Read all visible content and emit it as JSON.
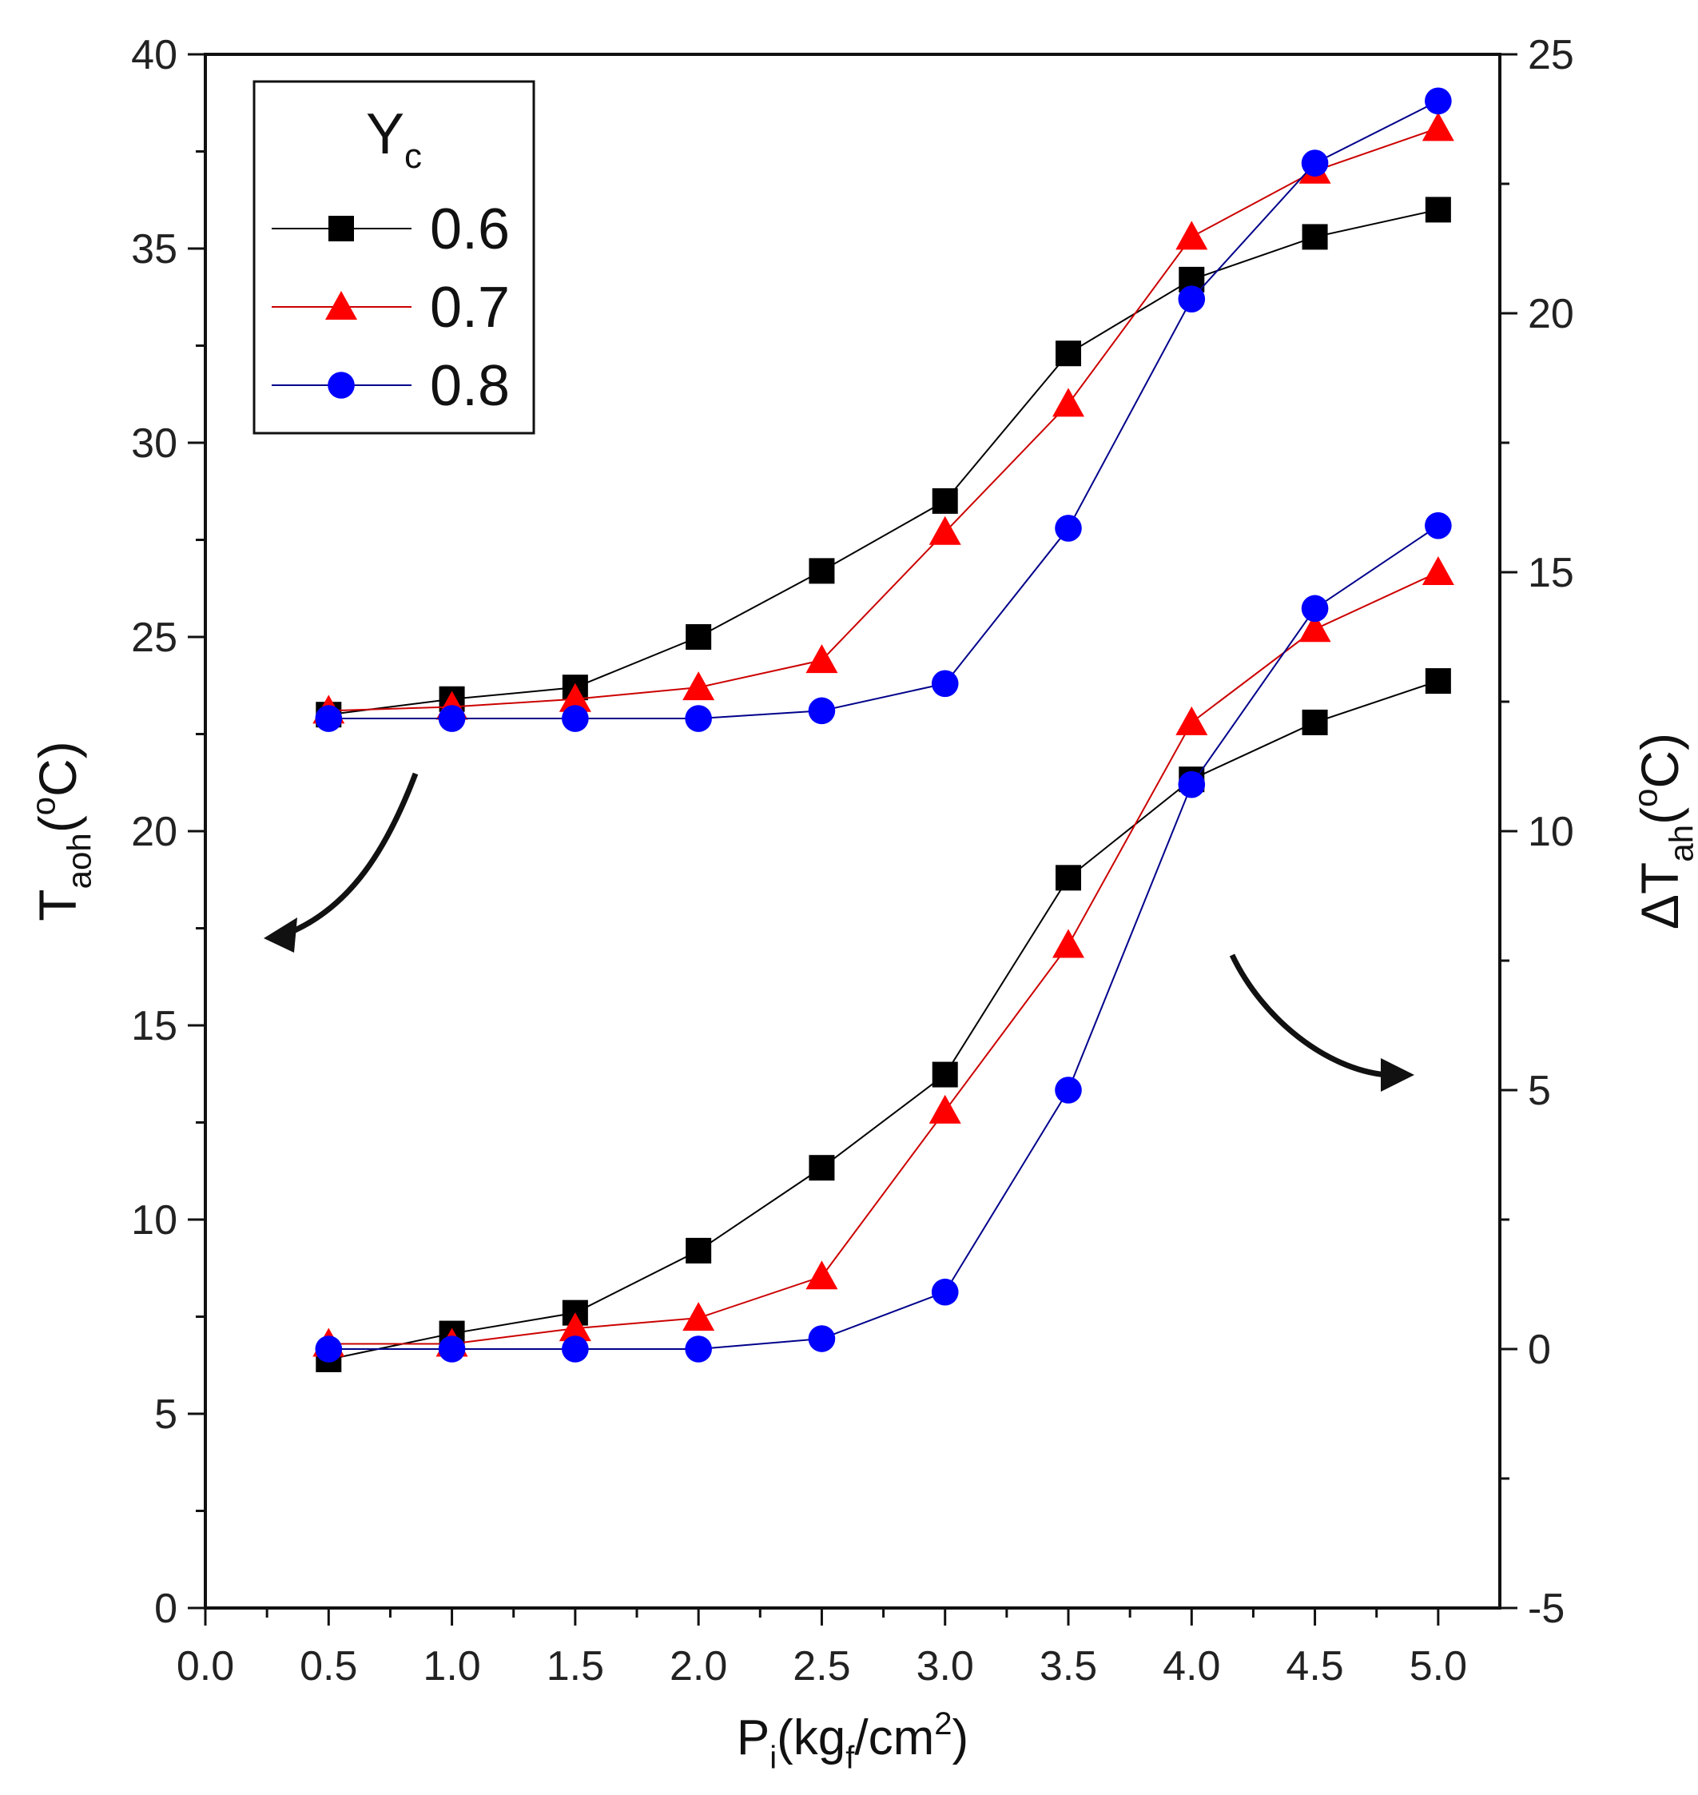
{
  "chart_data": {
    "type": "line",
    "title": "",
    "xlabel": {
      "main": "P",
      "sub": "i",
      "rest_pre": "(kg",
      "rest_sub": "f",
      "rest_mid": "/cm",
      "rest_sup": "2",
      "rest_post": ")"
    },
    "ylabel_left": {
      "main": "T",
      "sub": "aoh",
      "rest_pre": "(",
      "rest_sup": "o",
      "rest_post": "C)"
    },
    "ylabel_right": {
      "main": "ΔT",
      "sub": "ah",
      "rest_pre": "(",
      "rest_sup": "o",
      "rest_post": "C)"
    },
    "xlim": [
      0.0,
      5.25
    ],
    "ylim_left": [
      0,
      40
    ],
    "ylim_right": [
      -5,
      25
    ],
    "x_ticks": [
      "0.0",
      "0.5",
      "1.0",
      "1.5",
      "2.0",
      "2.5",
      "3.0",
      "3.5",
      "4.0",
      "4.5",
      "5.0"
    ],
    "y_ticks_left": [
      "0",
      "5",
      "10",
      "15",
      "20",
      "25",
      "30",
      "35",
      "40"
    ],
    "y_ticks_right": [
      "-5",
      "0",
      "5",
      "10",
      "15",
      "20",
      "25"
    ],
    "x": [
      0.5,
      1.0,
      1.5,
      2.0,
      2.5,
      3.0,
      3.5,
      4.0,
      4.5,
      5.0
    ],
    "legend": {
      "title_main": "Y",
      "title_sub": "c",
      "location": "top-left"
    },
    "series": [
      {
        "name": "0.6",
        "marker": "square",
        "color": "#000000",
        "line_color": "#000000",
        "axis": "left",
        "group": "T_aoh",
        "values": [
          23.0,
          23.4,
          23.7,
          25.0,
          26.7,
          28.5,
          32.3,
          34.2,
          35.3,
          36.0
        ]
      },
      {
        "name": "0.7",
        "marker": "triangle",
        "color": "#ff0000",
        "line_color": "#cc0000",
        "axis": "left",
        "group": "T_aoh",
        "values": [
          23.1,
          23.2,
          23.4,
          23.7,
          24.4,
          27.7,
          31.0,
          35.3,
          37.0,
          38.1
        ]
      },
      {
        "name": "0.8",
        "marker": "circle",
        "color": "#0000ff",
        "line_color": "#00008b",
        "axis": "left",
        "group": "T_aoh",
        "values": [
          22.9,
          22.9,
          22.9,
          22.9,
          23.1,
          23.8,
          27.8,
          33.7,
          37.2,
          38.8
        ]
      },
      {
        "name": "0.6",
        "marker": "square",
        "color": "#000000",
        "line_color": "#000000",
        "axis": "right",
        "group": "dT_ah",
        "values": [
          -0.2,
          0.3,
          0.7,
          1.9,
          3.5,
          5.3,
          9.1,
          11.0,
          12.1,
          12.9
        ]
      },
      {
        "name": "0.7",
        "marker": "triangle",
        "color": "#ff0000",
        "line_color": "#cc0000",
        "axis": "right",
        "group": "dT_ah",
        "values": [
          0.1,
          0.1,
          0.4,
          0.6,
          1.4,
          4.6,
          7.8,
          12.1,
          13.9,
          15.0
        ]
      },
      {
        "name": "0.8",
        "marker": "circle",
        "color": "#0000ff",
        "line_color": "#00008b",
        "axis": "right",
        "group": "dT_ah",
        "values": [
          0.0,
          0.0,
          0.0,
          0.0,
          0.2,
          1.1,
          5.0,
          10.9,
          14.3,
          15.9
        ]
      }
    ],
    "annotations": [
      {
        "name": "arrow-left-axis",
        "meaning": "upper curves refer to left axis"
      },
      {
        "name": "arrow-right-axis",
        "meaning": "lower curves refer to right axis"
      }
    ]
  }
}
